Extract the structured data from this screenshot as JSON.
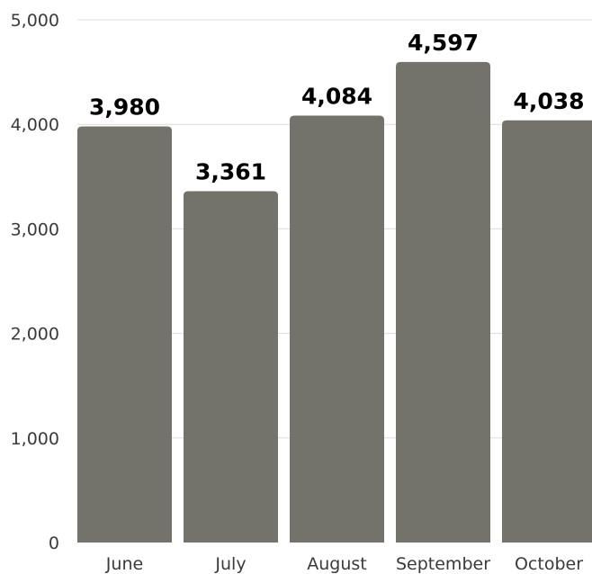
{
  "chart_data": {
    "type": "bar",
    "categories": [
      "June",
      "July",
      "August",
      "September",
      "October"
    ],
    "values": [
      3980,
      3361,
      4084,
      4597,
      4038
    ],
    "value_labels": [
      "3,980",
      "3,361",
      "4,084",
      "4,597",
      "4,038"
    ],
    "y_ticks": [
      0,
      1000,
      2000,
      3000,
      4000,
      5000
    ],
    "y_tick_labels": [
      "0",
      "1,000",
      "2,000",
      "3,000",
      "4,000",
      "5,000"
    ],
    "ylim": [
      0,
      5000
    ],
    "grid": true,
    "bar_color": "#74736b",
    "title": "",
    "xlabel": "",
    "ylabel": ""
  }
}
